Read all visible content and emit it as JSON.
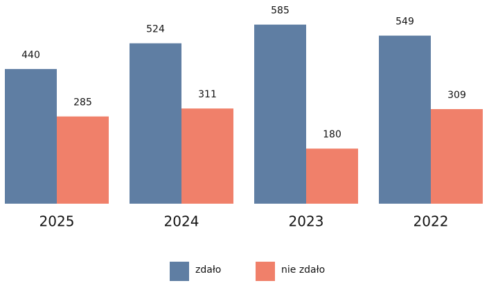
{
  "chart_data": {
    "type": "bar",
    "categories": [
      "2025",
      "2024",
      "2023",
      "2022"
    ],
    "series": [
      {
        "name": "zdało",
        "color": "#5f7ea3",
        "values": [
          440,
          524,
          585,
          549
        ]
      },
      {
        "name": "nie zdało",
        "color": "#f0806a",
        "values": [
          285,
          311,
          180,
          309
        ]
      }
    ],
    "ylim": [
      0,
      600
    ]
  }
}
